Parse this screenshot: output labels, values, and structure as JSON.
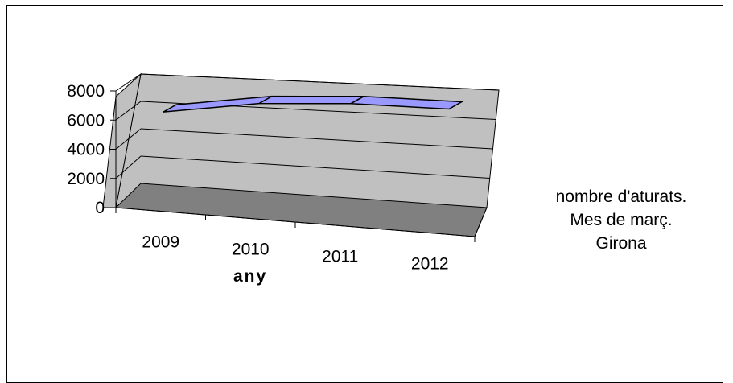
{
  "chart_data": {
    "type": "line",
    "style": "3d-ribbon",
    "categories": [
      "2009",
      "2010",
      "2011",
      "2012"
    ],
    "series": [
      {
        "name": "nombre d'aturats. Mes de març. Girona",
        "values": [
          5900,
          6850,
          7150,
          7100
        ],
        "color": "#9999ff"
      }
    ],
    "xlabel": "any",
    "ylabel": "",
    "title": "",
    "ylim": [
      0,
      8000
    ],
    "yticks": [
      "0",
      "2000",
      "4000",
      "6000",
      "8000"
    ],
    "grid": true,
    "legend_position": "right",
    "legend_lines": [
      "nombre d'aturats.",
      "Mes de març.",
      "Girona"
    ],
    "wall_color": "#c0c0c0",
    "floor_color": "#808080",
    "line_color": "#9999ff"
  }
}
